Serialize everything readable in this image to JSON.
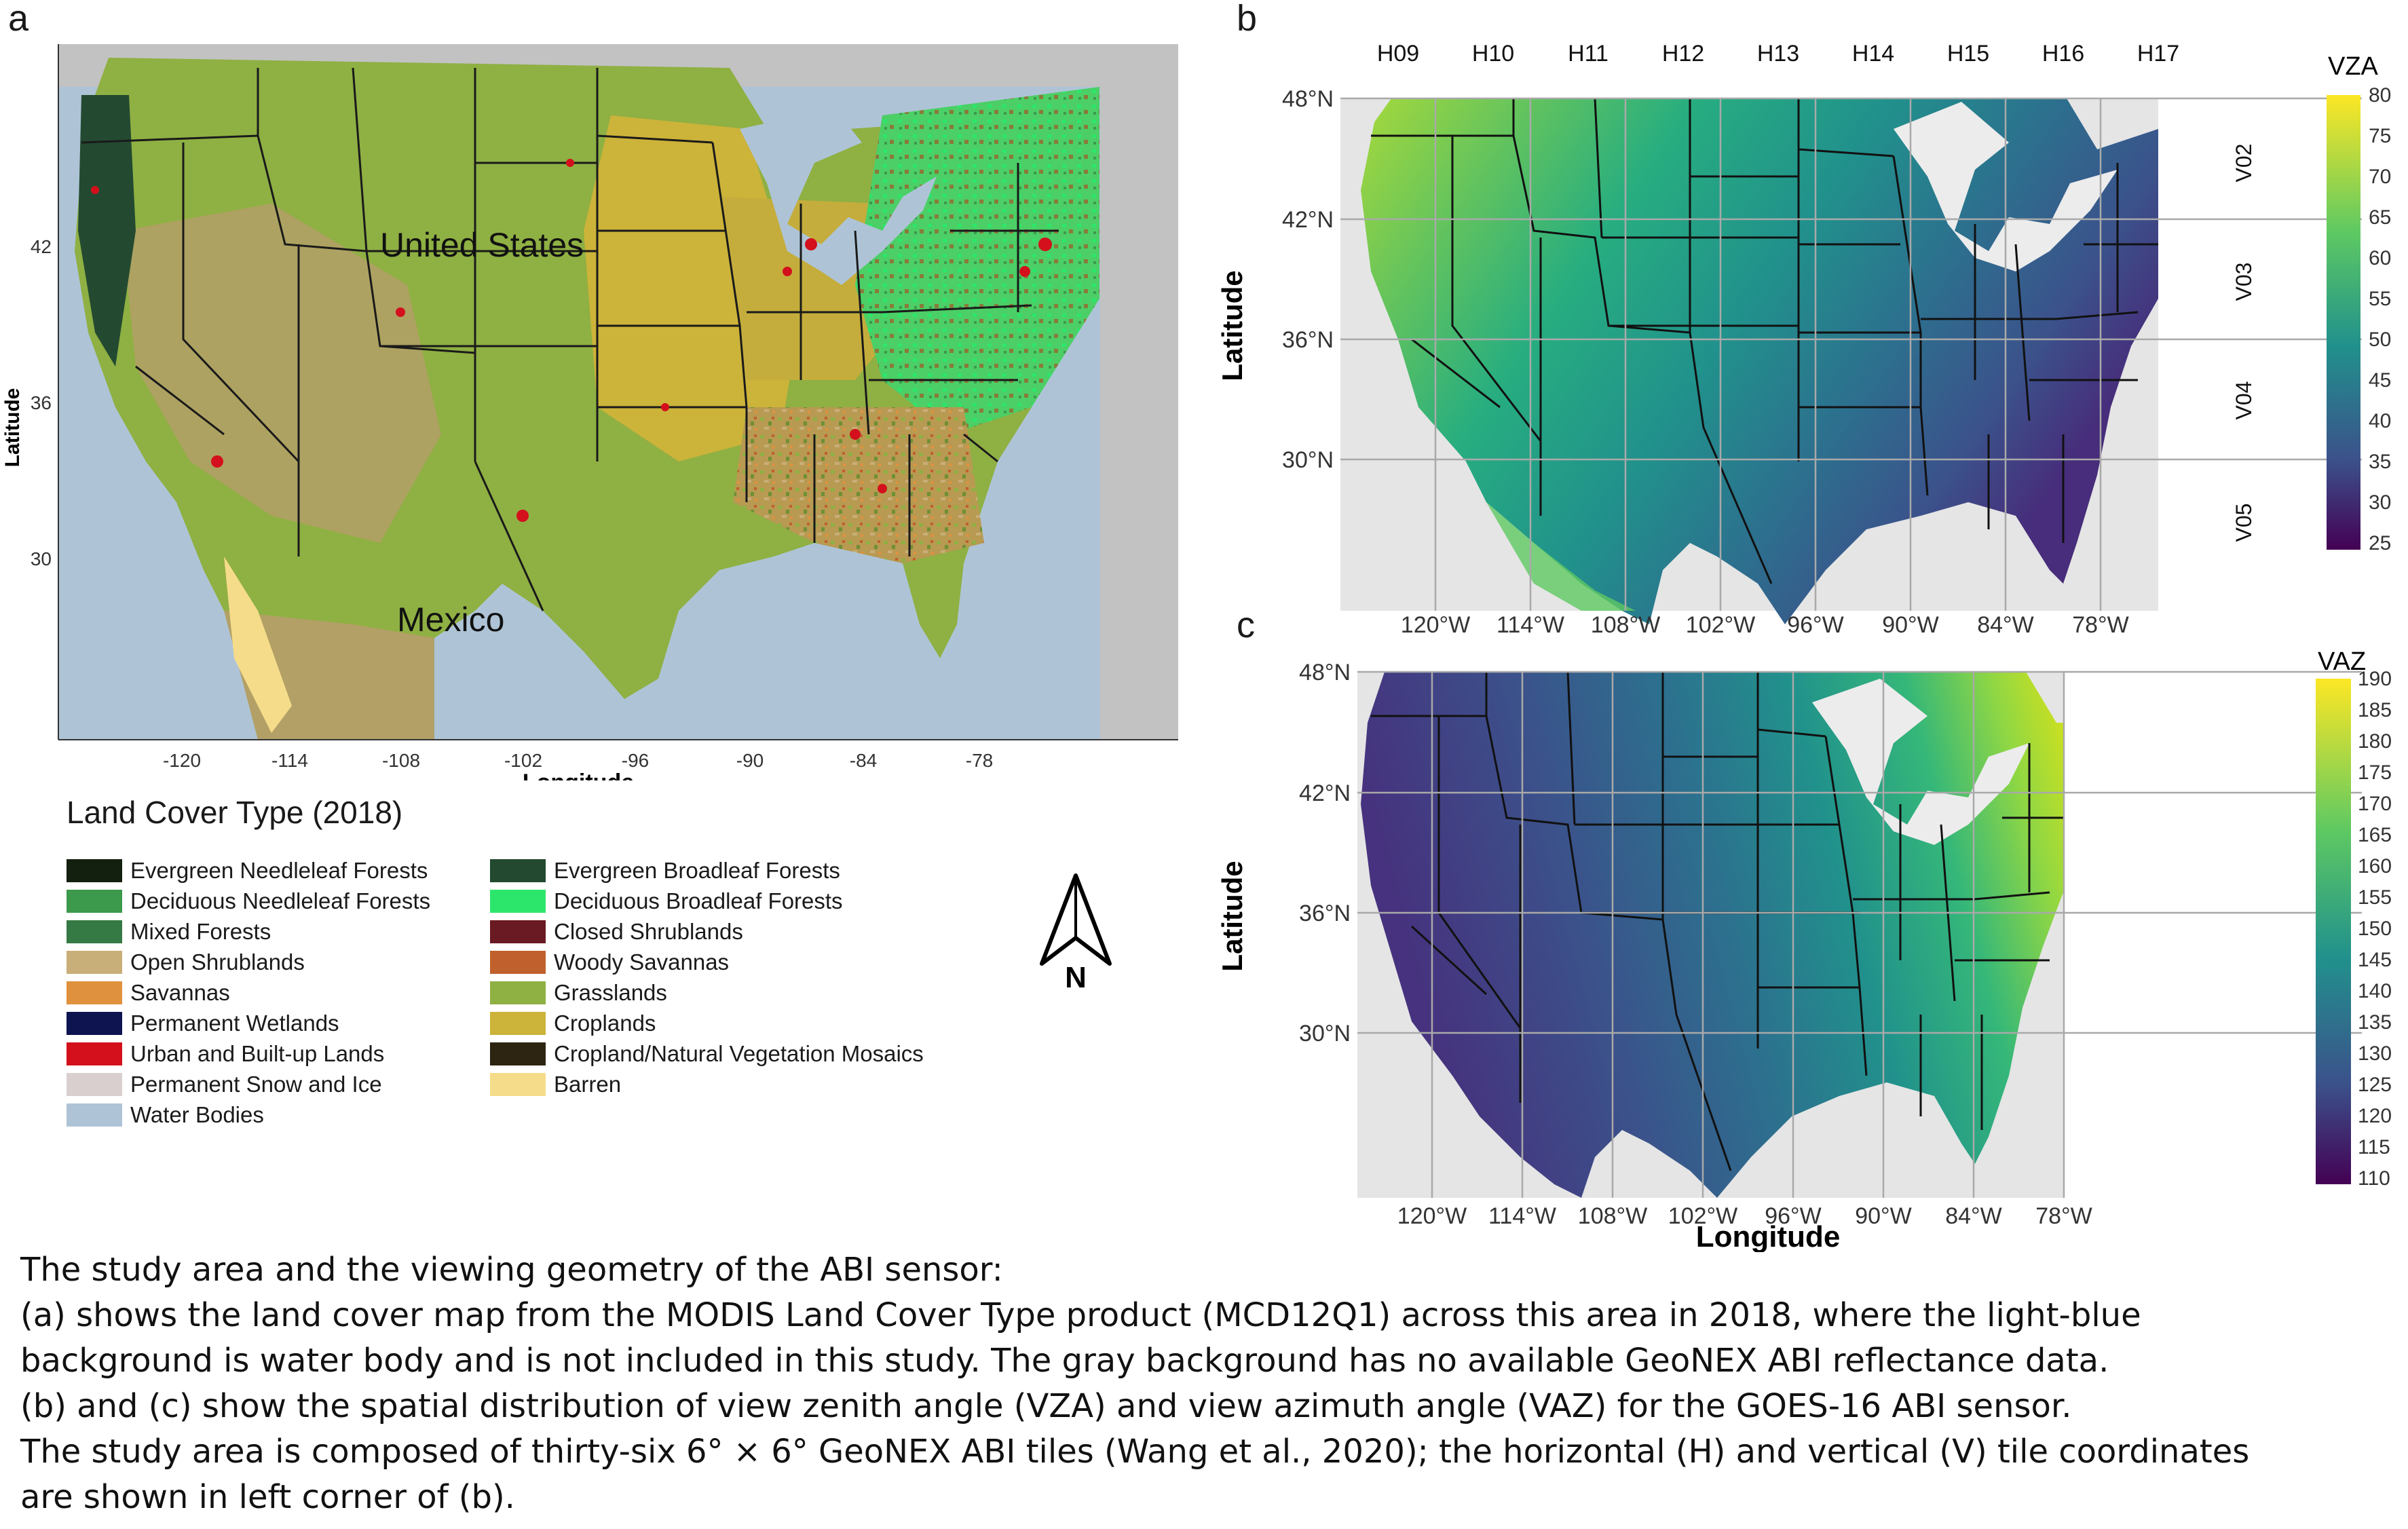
{
  "panels": {
    "a": {
      "letter": "a",
      "labels": {
        "us": "United States",
        "mexico": "Mexico"
      },
      "ylabel": "Latitude",
      "xlabel": "Longitude",
      "lat_ticks": [
        "42",
        "36",
        "30"
      ],
      "lon_ticks": [
        "-120",
        "-114",
        "-108",
        "-102",
        "-96",
        "-90",
        "-84",
        "-78"
      ]
    },
    "b": {
      "letter": "b",
      "ylabel": "Latitude",
      "lat_ticks": [
        "48°N",
        "42°N",
        "36°N",
        "30°N"
      ],
      "lon_ticks": [
        "120°W",
        "114°W",
        "108°W",
        "102°W",
        "96°W",
        "90°W",
        "84°W",
        "78°W"
      ],
      "h_tiles": [
        "H09",
        "H10",
        "H11",
        "H12",
        "H13",
        "H14",
        "H15",
        "H16",
        "H17"
      ],
      "v_tiles": [
        "V02",
        "V03",
        "V04",
        "V05"
      ],
      "colorbar": {
        "title": "VZA",
        "ticks": [
          "80",
          "75",
          "70",
          "65",
          "60",
          "55",
          "50",
          "45",
          "40",
          "35",
          "30",
          "25"
        ]
      }
    },
    "c": {
      "letter": "c",
      "ylabel": "Latitude",
      "xlabel": "Longitude",
      "lat_ticks": [
        "48°N",
        "42°N",
        "36°N",
        "30°N"
      ],
      "lon_ticks": [
        "120°W",
        "114°W",
        "108°W",
        "102°W",
        "96°W",
        "90°W",
        "84°W",
        "78°W"
      ],
      "colorbar": {
        "title": "VAZ",
        "ticks": [
          "190",
          "185",
          "180",
          "175",
          "170",
          "165",
          "160",
          "155",
          "150",
          "145",
          "140",
          "135",
          "130",
          "125",
          "120",
          "115",
          "110"
        ]
      }
    }
  },
  "legend": {
    "title": "Land Cover Type (2018)",
    "left": [
      {
        "label": "Evergreen Needleleaf Forests",
        "color": "#14200f"
      },
      {
        "label": "Deciduous Needleleaf Forests",
        "color": "#3c9a4c"
      },
      {
        "label": "Mixed Forests",
        "color": "#357a44"
      },
      {
        "label": "Open Shrublands",
        "color": "#c8ae78"
      },
      {
        "label": "Savannas",
        "color": "#e0913e"
      },
      {
        "label": "Permanent Wetlands",
        "color": "#0d1450"
      },
      {
        "label": "Urban and Built-up Lands",
        "color": "#d3101c"
      },
      {
        "label": "Permanent Snow and Ice",
        "color": "#d9cfcf"
      },
      {
        "label": "Water Bodies",
        "color": "#aec4d6"
      }
    ],
    "right": [
      {
        "label": "Evergreen Broadleaf Forests",
        "color": "#234a31"
      },
      {
        "label": "Deciduous Broadleaf Forests",
        "color": "#2ce66c"
      },
      {
        "label": "Closed Shrublands",
        "color": "#6a1a22"
      },
      {
        "label": "Woody Savannas",
        "color": "#c0602c"
      },
      {
        "label": "Grasslands",
        "color": "#8fb043"
      },
      {
        "label": "Croplands",
        "color": "#ccb339"
      },
      {
        "label": "Cropland/Natural Vegetation Mosaics",
        "color": "#2d2412"
      },
      {
        "label": "Barren",
        "color": "#f5dc8a"
      }
    ]
  },
  "north_arrow": {
    "label": "N"
  },
  "caption": {
    "lines": [
      "The study area and the viewing geometry of the ABI sensor:",
      "(a) shows the land cover map from the MODIS Land Cover Type product (MCD12Q1) across this area in 2018, where the light-blue",
      "background is water body and is not included in this study. The gray background has no available GeoNEX ABI reflectance data.",
      "(b) and (c) show the spatial distribution of view zenith angle (VZA) and view azimuth angle (VAZ) for the GOES-16 ABI sensor.",
      "The study area is composed of thirty-six 6° × 6° GeoNEX ABI tiles (Wang et al., 2020); the horizontal (H) and vertical (V) tile coordinates",
      "are shown in left corner of (b)."
    ]
  },
  "colors": {
    "water": "#aec4d6",
    "nodata": "#c2c2c2",
    "grid": "#a9a9a9",
    "panel_bg": "#e5e5e5"
  }
}
